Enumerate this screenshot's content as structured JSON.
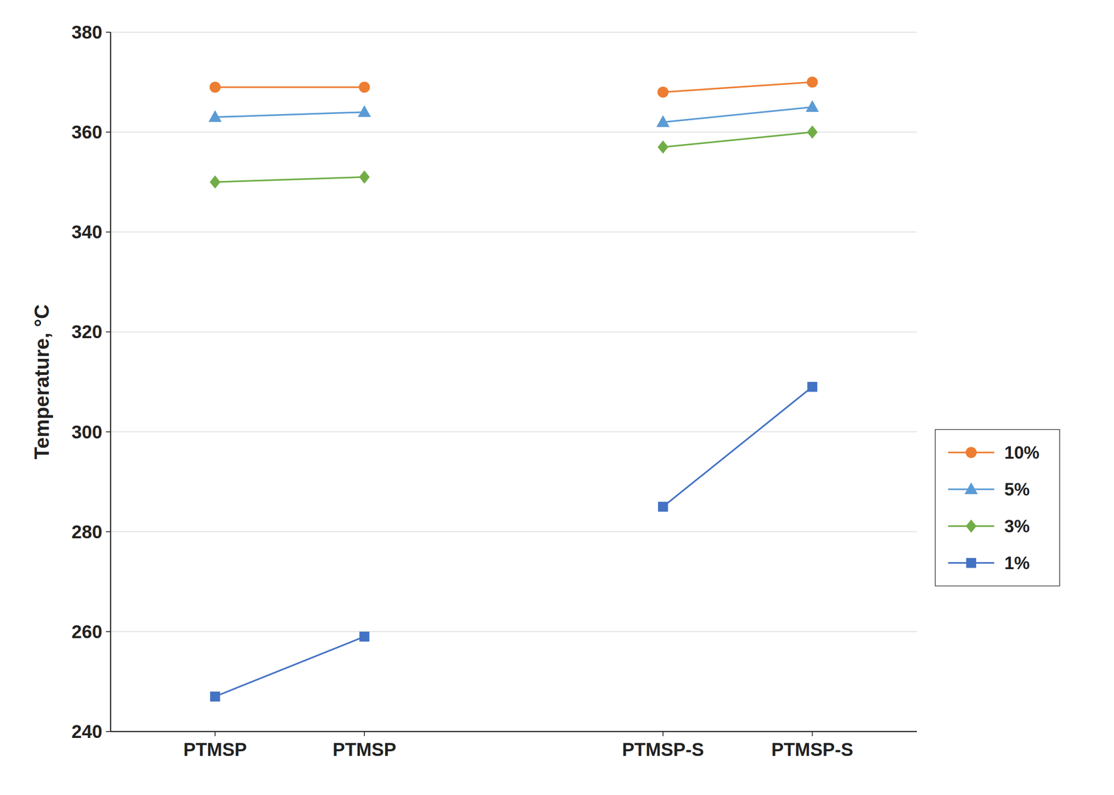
{
  "chart_data": {
    "type": "line",
    "title": "",
    "ylabel": "Temperature, °C",
    "categories": [
      "PTMSP",
      "PTMSP",
      null,
      "PTMSP-S",
      "PTMSP-S"
    ],
    "ylim": [
      240,
      380
    ],
    "yticks": [
      240,
      260,
      280,
      300,
      320,
      340,
      360,
      380
    ],
    "grid": true,
    "legend": "right",
    "series": [
      {
        "name": "10%",
        "color": "#ED7D31",
        "marker": "circle",
        "values": [
          369,
          369,
          null,
          368,
          370
        ]
      },
      {
        "name": "5%",
        "color": "#5B9BD5",
        "marker": "triangle",
        "values": [
          363,
          364,
          null,
          362,
          365
        ]
      },
      {
        "name": "3%",
        "color": "#70AD47",
        "marker": "diamond",
        "values": [
          350,
          351,
          null,
          357,
          360
        ]
      },
      {
        "name": "1%",
        "color": "#4472C4",
        "marker": "square",
        "values": [
          247,
          259,
          null,
          285,
          309
        ]
      }
    ]
  }
}
